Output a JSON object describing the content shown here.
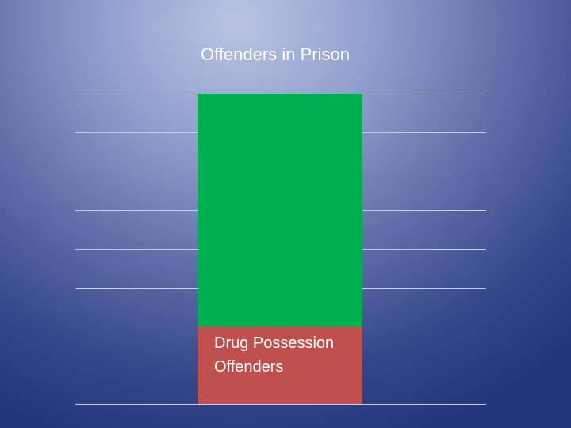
{
  "chart_data": {
    "type": "bar",
    "title": "Offenders in Prison",
    "categories": [
      ""
    ],
    "stacked": true,
    "grid": true,
    "series": [
      {
        "name": "Drug Possession Offenders",
        "values": [
          20
        ],
        "color": "#c0504d"
      },
      {
        "name": "",
        "values": [
          60
        ],
        "color": "#00b050"
      }
    ],
    "gridlines": [
      0,
      30,
      40,
      50,
      70,
      80
    ],
    "ylim": [
      0,
      80
    ]
  }
}
